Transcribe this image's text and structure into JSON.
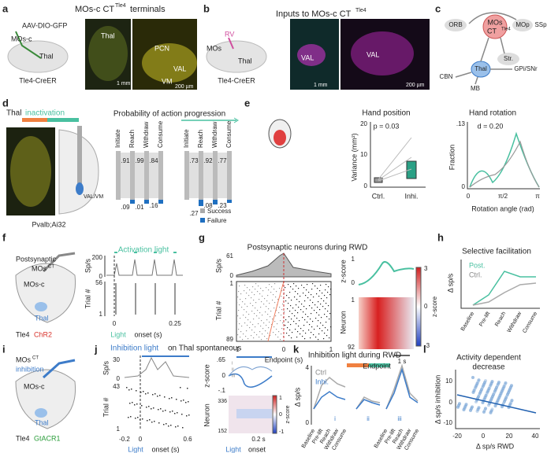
{
  "panels": [
    {
      "letter": "a",
      "texts": [
        "MOs-c CT",
        "Tle4",
        "terminals",
        "AAV-DIO-GFP",
        "MOs-c",
        "Thal",
        "Tle4-CreER",
        "Thal",
        "PCN",
        "VAL",
        "VM",
        "1 mm",
        "200 µm"
      ]
    },
    {
      "letter": "b",
      "texts": [
        "Inputs to MOs-c CT",
        "Tle4",
        "RV",
        "MOs",
        "Thal",
        "Tle4-CreER",
        "VAL",
        "VAL",
        "1 mm",
        "200 µm"
      ]
    },
    {
      "letter": "c",
      "texts": [
        "MOs",
        "CT",
        "Tle4",
        "ORB",
        "MOp",
        "SSp",
        "Str.",
        "Thal",
        "GPi/SNr",
        "CBN",
        "MB"
      ]
    },
    {
      "letter": "d",
      "texts": [
        "Thal",
        "inactivation",
        "VAL/VM",
        "Pvalb;Ai32",
        "Probability of action progression",
        "Initiate",
        "Reach",
        "Withdraw",
        "Consume",
        "Initiate",
        "Reach",
        "Withdraw",
        "Consume",
        ".91",
        ".99",
        ".84",
        ".09",
        ".01",
        ".16",
        ".73",
        ".92",
        ".77",
        ".27",
        ".08",
        ".23",
        "Success",
        "Failure"
      ]
    },
    {
      "letter": "e",
      "texts": [
        "Hand position",
        "p = 0.03",
        "Variance (mm²)",
        "20",
        "10",
        "0",
        "Ctrl.",
        "Inhi.",
        "Hand rotation",
        "d = 0.20",
        "Fraction",
        ".13",
        "0",
        "0",
        "π/2",
        "π",
        "Rotation angle (rad)"
      ]
    },
    {
      "letter": "f",
      "texts": [
        "Postsynaptic",
        "MOs",
        "CT",
        "MOs-c",
        "Thal",
        "Tle4",
        "ChR2",
        "Activation light",
        "Sp/s",
        "200",
        "0",
        "Trial #",
        "56",
        "1",
        "0",
        "0.25",
        "Light",
        "onset (s)"
      ]
    },
    {
      "letter": "g",
      "texts": [
        "Postsynaptic neurons during RWD",
        "Sp/s",
        "61",
        "0",
        "Trial #",
        "1",
        "89",
        "-1",
        "0",
        "1",
        "Endpoint (s)",
        "z-score",
        "1",
        "0",
        "Neuron",
        "1",
        "92",
        "3",
        "0",
        "-3",
        "z-score",
        "Endpoint",
        "1 s"
      ]
    },
    {
      "letter": "h",
      "texts": [
        "Selective facilitation",
        "Post.",
        "Ctrl.",
        "Δ sp/s",
        "Baseline",
        "Pre-lift",
        "Reach",
        "Withdraw",
        "Consume"
      ]
    },
    {
      "letter": "i",
      "texts": [
        "MOs",
        "CT",
        "inhibition",
        "MOs-c",
        "Thal",
        "Tle4",
        "GtACR1"
      ]
    },
    {
      "letter": "j",
      "texts": [
        "Inhibition light",
        "on Thal spontaneous",
        "Sp/s",
        "30",
        "0",
        "Trial #",
        "43",
        "1",
        "-0.2",
        "0",
        "0.6",
        "Light",
        "onset (s)",
        "z-score",
        ".65",
        "0",
        "-.1",
        "i",
        "ii",
        "iii",
        "Neuron",
        "336",
        "152",
        "1",
        "0",
        "-1",
        "z-score",
        "0.2 s",
        "Light",
        "onset"
      ]
    },
    {
      "letter": "k",
      "texts": [
        "Inhibition light during RWD",
        "Ctrl",
        "Inhi.",
        "Δ sp/s",
        "4",
        "0",
        "Baseline",
        "Pre-lift",
        "Reach",
        "Withdraw",
        "Consume",
        "Baseline",
        "Pre-lift",
        "Reach",
        "Withdraw",
        "Consume",
        "i",
        "ii",
        "iii"
      ]
    },
    {
      "letter": "l",
      "texts": [
        "Activity dependent",
        "decrease",
        "Δ sp/s inhibition",
        "10",
        "0",
        "-10",
        "-20",
        "0",
        "20",
        "40",
        "Δ sp/s RWD"
      ]
    }
  ]
}
